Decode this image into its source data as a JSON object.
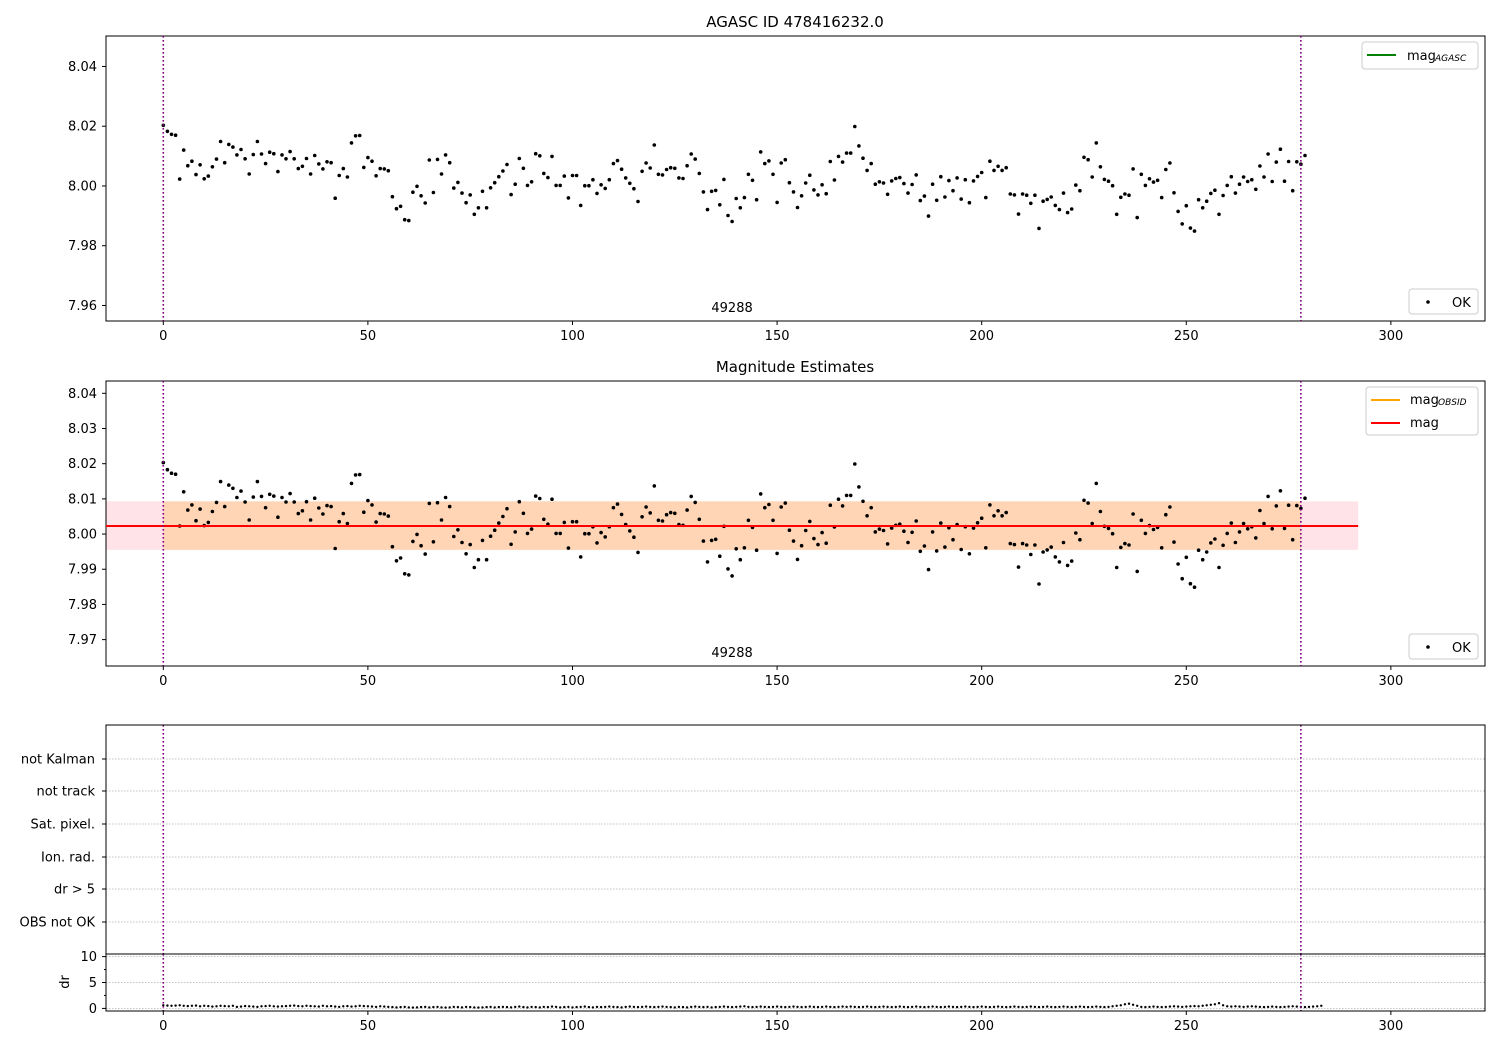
{
  "chart_data": [
    {
      "type": "scatter",
      "title": "AGASC ID 478416232.0",
      "xlabel": "",
      "ylabel": "",
      "xlim": [
        -14,
        323
      ],
      "ylim": [
        7.9548,
        8.0502
      ],
      "xticks": [
        0,
        50,
        100,
        150,
        200,
        250,
        300
      ],
      "yticks": [
        7.96,
        7.98,
        8.0,
        8.02,
        8.04
      ],
      "yticklabels": [
        "7.96",
        "7.98",
        "8.00",
        "8.02",
        "8.04"
      ],
      "vlines": [
        0,
        278
      ],
      "annotation": "49288",
      "annotation_x": 139,
      "legend_upper": [
        {
          "label": "mag",
          "sub": "AGASC",
          "color": "#008000",
          "style": "line"
        }
      ],
      "legend_lower": [
        {
          "label": "OK",
          "color": "#000000",
          "style": "point"
        }
      ],
      "grid": false
    },
    {
      "type": "scatter",
      "title": "Magnitude Estimates",
      "xlabel": "",
      "ylabel": "",
      "xlim": [
        -14,
        323
      ],
      "ylim": [
        7.9625,
        8.0435
      ],
      "xticks": [
        0,
        50,
        100,
        150,
        200,
        250,
        300
      ],
      "yticks": [
        7.97,
        7.98,
        7.99,
        8.0,
        8.01,
        8.02,
        8.03,
        8.04
      ],
      "yticklabels": [
        "7.97",
        "7.98",
        "7.99",
        "8.00",
        "8.01",
        "8.02",
        "8.03",
        "8.04"
      ],
      "vlines": [
        0,
        278
      ],
      "annotation": "49288",
      "annotation_x": 139,
      "mag_line": 8.0023,
      "band_pink": {
        "x": [
          -14,
          292
        ],
        "y": [
          7.9955,
          8.0093
        ],
        "color": "#ffc0cb"
      },
      "band_orange": {
        "x": [
          0,
          278
        ],
        "y": [
          7.9955,
          8.0093
        ],
        "color": "#ffa500"
      },
      "legend_upper": [
        {
          "label": "mag",
          "sub": "OBSID",
          "color": "#ffa500",
          "style": "line"
        },
        {
          "label": "mag",
          "sub": "",
          "color": "#ff0000",
          "style": "line"
        }
      ],
      "legend_lower": [
        {
          "label": "OK",
          "color": "#000000",
          "style": "point"
        }
      ],
      "grid": false
    },
    {
      "type": "scatter",
      "title": "",
      "xlim": [
        -14,
        323
      ],
      "ylim": [
        0,
        7
      ],
      "categories": [
        "not Kalman",
        "not track",
        "Sat. pixel.",
        "Ion. rad.",
        "dr > 5",
        "OBS not OK"
      ],
      "vlines": [
        0,
        278
      ],
      "grid": true
    },
    {
      "type": "scatter",
      "title": "",
      "ylabel": "dr",
      "xlim": [
        -14,
        323
      ],
      "ylim": [
        -0.5,
        10.5
      ],
      "xticks": [
        0,
        50,
        100,
        150,
        200,
        250,
        300
      ],
      "yticks": [
        0,
        5,
        10
      ],
      "yticklabels": [
        "0",
        "5",
        "10"
      ],
      "vlines": [
        0,
        278
      ],
      "grid": true,
      "dr_values": [
        0.6,
        0.55,
        0.5,
        0.55,
        0.6,
        0.5,
        0.45,
        0.5,
        0.55,
        0.4,
        0.5,
        0.45,
        0.35,
        0.4,
        0.5,
        0.45,
        0.4,
        0.5,
        0.3,
        0.35,
        0.45,
        0.4,
        0.35,
        0.3,
        0.4,
        0.45,
        0.5,
        0.4,
        0.35,
        0.4,
        0.45,
        0.5,
        0.55,
        0.45,
        0.4,
        0.5,
        0.45,
        0.4,
        0.35,
        0.5,
        0.4,
        0.45,
        0.35,
        0.3,
        0.4,
        0.45,
        0.35,
        0.4,
        0.5,
        0.45,
        0.4,
        0.35,
        0.3,
        0.4,
        0.35,
        0.3,
        0.25,
        0.2,
        0.25,
        0.3,
        0.2,
        0.15,
        0.2,
        0.25,
        0.3,
        0.2,
        0.25,
        0.3,
        0.2,
        0.15,
        0.2,
        0.3,
        0.25,
        0.2,
        0.3,
        0.25,
        0.2,
        0.15,
        0.2,
        0.25,
        0.3,
        0.2,
        0.25,
        0.3,
        0.25,
        0.2,
        0.3,
        0.35,
        0.25,
        0.2,
        0.3,
        0.25,
        0.2,
        0.3,
        0.25,
        0.35,
        0.3,
        0.2,
        0.25,
        0.3,
        0.2,
        0.25,
        0.3,
        0.35,
        0.25,
        0.2,
        0.3,
        0.25,
        0.3,
        0.35,
        0.3,
        0.25,
        0.2,
        0.3,
        0.35,
        0.3,
        0.25,
        0.3,
        0.35,
        0.3,
        0.25,
        0.3,
        0.35,
        0.3,
        0.25,
        0.2,
        0.3,
        0.25,
        0.2,
        0.3,
        0.35,
        0.3,
        0.25,
        0.3,
        0.2,
        0.25,
        0.3,
        0.35,
        0.3,
        0.25,
        0.3,
        0.35,
        0.4,
        0.3,
        0.25,
        0.3,
        0.35,
        0.3,
        0.25,
        0.3,
        0.35,
        0.3,
        0.25,
        0.3,
        0.35,
        0.3,
        0.25,
        0.3,
        0.35,
        0.3,
        0.25,
        0.3,
        0.35,
        0.3,
        0.25,
        0.3,
        0.35,
        0.3,
        0.35,
        0.3,
        0.25,
        0.3,
        0.35,
        0.3,
        0.25,
        0.3,
        0.35,
        0.3,
        0.25,
        0.3,
        0.35,
        0.3,
        0.25,
        0.3,
        0.35,
        0.3,
        0.25,
        0.3,
        0.35,
        0.3,
        0.25,
        0.3,
        0.35,
        0.3,
        0.25,
        0.3,
        0.35,
        0.3,
        0.25,
        0.3,
        0.35,
        0.3,
        0.25,
        0.3,
        0.35,
        0.3,
        0.25,
        0.3,
        0.35,
        0.3,
        0.25,
        0.3,
        0.35,
        0.3,
        0.25,
        0.3,
        0.35,
        0.3,
        0.25,
        0.3,
        0.35,
        0.3,
        0.25,
        0.3,
        0.35,
        0.3,
        0.25,
        0.3,
        0.35,
        0.3,
        0.25,
        0.3,
        0.4,
        0.5,
        0.6,
        0.8,
        0.9,
        0.7,
        0.5,
        0.3,
        0.25,
        0.3,
        0.35,
        0.3,
        0.25,
        0.3,
        0.35,
        0.4,
        0.35,
        0.3,
        0.35,
        0.4,
        0.45,
        0.4,
        0.5,
        0.6,
        0.7,
        0.8,
        1.0,
        0.6,
        0.4,
        0.35,
        0.4,
        0.35,
        0.3,
        0.35,
        0.4,
        0.35,
        0.3,
        0.25,
        0.3,
        0.35,
        0.3,
        0.25,
        0.3,
        0.35,
        0.4,
        0.35,
        0.3,
        0.25,
        0.3,
        0.35,
        0.4,
        0.5
      ]
    }
  ],
  "mag_points": [
    [
      0,
      8.0203
    ],
    [
      1,
      8.0183
    ],
    [
      2,
      8.0173
    ],
    [
      3,
      8.017
    ],
    [
      4,
      8.0023
    ],
    [
      5,
      8.012
    ],
    [
      6,
      8.0068
    ],
    [
      7,
      8.0083
    ],
    [
      8,
      8.0038
    ],
    [
      9,
      8.0071
    ],
    [
      10,
      8.0024
    ],
    [
      11,
      8.0033
    ],
    [
      12,
      8.0064
    ],
    [
      13,
      8.009
    ],
    [
      14,
      8.0149
    ],
    [
      15,
      8.0078
    ],
    [
      16,
      8.0139
    ],
    [
      17,
      8.013
    ],
    [
      18,
      8.0104
    ],
    [
      19,
      8.0122
    ],
    [
      20,
      8.0091
    ],
    [
      21,
      8.004
    ],
    [
      22,
      8.0105
    ],
    [
      23,
      8.0149
    ],
    [
      24,
      8.0107
    ],
    [
      25,
      8.0075
    ],
    [
      26,
      8.0113
    ],
    [
      27,
      8.0108
    ],
    [
      28,
      8.0048
    ],
    [
      29,
      8.0104
    ],
    [
      30,
      8.0091
    ],
    [
      31,
      8.0115
    ],
    [
      32,
      8.0091
    ],
    [
      33,
      8.0058
    ],
    [
      34,
      8.0066
    ],
    [
      35,
      8.0092
    ],
    [
      36,
      8.004
    ],
    [
      37,
      8.0102
    ],
    [
      38,
      8.0074
    ],
    [
      39,
      8.0057
    ],
    [
      40,
      8.0081
    ],
    [
      41,
      8.0078
    ],
    [
      42,
      7.9959
    ],
    [
      43,
      8.0035
    ],
    [
      44,
      8.0058
    ],
    [
      45,
      8.003
    ],
    [
      46,
      8.0144
    ],
    [
      47,
      8.0168
    ],
    [
      48,
      8.0169
    ],
    [
      49,
      8.0062
    ],
    [
      50,
      8.0095
    ],
    [
      51,
      8.0083
    ],
    [
      52,
      8.0034
    ],
    [
      53,
      8.0058
    ],
    [
      54,
      8.0057
    ],
    [
      55,
      8.0051
    ],
    [
      56,
      7.9964
    ],
    [
      57,
      7.9924
    ],
    [
      58,
      7.9932
    ],
    [
      59,
      7.9887
    ],
    [
      60,
      7.9884
    ],
    [
      61,
      7.9979
    ],
    [
      62,
      7.9999
    ],
    [
      63,
      7.9967
    ],
    [
      64,
      7.9943
    ],
    [
      65,
      8.0087
    ],
    [
      66,
      7.9978
    ],
    [
      67,
      8.0089
    ],
    [
      68,
      8.004
    ],
    [
      69,
      8.0104
    ],
    [
      70,
      8.0078
    ],
    [
      71,
      7.9993
    ],
    [
      72,
      8.0012
    ],
    [
      73,
      7.9976
    ],
    [
      74,
      7.9944
    ],
    [
      75,
      7.997
    ],
    [
      76,
      7.9905
    ],
    [
      77,
      7.9927
    ],
    [
      78,
      7.9982
    ],
    [
      79,
      7.9927
    ],
    [
      80,
      7.9994
    ],
    [
      81,
      8.0011
    ],
    [
      82,
      8.0031
    ],
    [
      83,
      8.005
    ],
    [
      84,
      8.0072
    ],
    [
      85,
      7.9971
    ],
    [
      86,
      8.0006
    ],
    [
      87,
      8.0092
    ],
    [
      88,
      8.0059
    ],
    [
      89,
      8.0002
    ],
    [
      90,
      8.0014
    ],
    [
      91,
      8.0108
    ],
    [
      92,
      8.0101
    ],
    [
      93,
      8.0042
    ],
    [
      94,
      8.0028
    ],
    [
      95,
      8.0099
    ],
    [
      96,
      8.0002
    ],
    [
      97,
      8.0002
    ],
    [
      98,
      8.0033
    ],
    [
      99,
      7.996
    ],
    [
      100,
      8.0035
    ],
    [
      101,
      8.0035
    ],
    [
      102,
      7.9935
    ],
    [
      103,
      8.0001
    ],
    [
      104,
      8.0001
    ],
    [
      105,
      8.0021
    ],
    [
      106,
      7.9975
    ],
    [
      107,
      8.0004
    ],
    [
      108,
      7.9992
    ],
    [
      109,
      8.0021
    ],
    [
      110,
      8.0075
    ],
    [
      111,
      8.0085
    ],
    [
      112,
      8.0056
    ],
    [
      113,
      8.0027
    ],
    [
      114,
      8.0009
    ],
    [
      115,
      7.9991
    ],
    [
      116,
      7.9948
    ],
    [
      117,
      8.0049
    ],
    [
      118,
      8.0077
    ],
    [
      119,
      8.006
    ],
    [
      120,
      8.0137
    ],
    [
      121,
      8.0039
    ],
    [
      122,
      8.0037
    ],
    [
      123,
      8.0055
    ],
    [
      124,
      8.0061
    ],
    [
      125,
      8.0059
    ],
    [
      126,
      8.0027
    ],
    [
      127,
      8.0025
    ],
    [
      128,
      8.0068
    ],
    [
      129,
      8.0107
    ],
    [
      130,
      8.009
    ],
    [
      131,
      8.0042
    ],
    [
      132,
      7.998
    ],
    [
      133,
      7.9921
    ],
    [
      134,
      7.9982
    ],
    [
      135,
      7.9985
    ],
    [
      136,
      7.9937
    ],
    [
      137,
      8.0022
    ],
    [
      138,
      7.9901
    ],
    [
      139,
      7.9881
    ],
    [
      140,
      7.9958
    ],
    [
      141,
      7.9927
    ],
    [
      142,
      7.9961
    ],
    [
      143,
      8.0039
    ],
    [
      144,
      8.0019
    ],
    [
      145,
      7.9954
    ],
    [
      146,
      8.0114
    ],
    [
      147,
      8.0075
    ],
    [
      148,
      8.0084
    ],
    [
      149,
      8.0039
    ],
    [
      150,
      7.9945
    ],
    [
      151,
      8.0077
    ],
    [
      152,
      8.0088
    ],
    [
      153,
      8.0011
    ],
    [
      154,
      7.998
    ],
    [
      155,
      7.9928
    ],
    [
      156,
      7.9967
    ],
    [
      157,
      8.001
    ],
    [
      158,
      8.0036
    ],
    [
      159,
      7.9987
    ],
    [
      160,
      7.997
    ],
    [
      161,
      8.0004
    ],
    [
      162,
      7.9974
    ],
    [
      163,
      8.0082
    ],
    [
      164,
      8.002
    ],
    [
      165,
      8.0099
    ],
    [
      166,
      8.008
    ],
    [
      167,
      8.011
    ],
    [
      168,
      8.011
    ],
    [
      169,
      8.0199
    ],
    [
      170,
      8.0134
    ],
    [
      171,
      8.0093
    ],
    [
      172,
      8.0052
    ],
    [
      173,
      8.0075
    ],
    [
      174,
      8.0006
    ],
    [
      175,
      8.0014
    ],
    [
      176,
      8.001
    ],
    [
      177,
      7.9972
    ],
    [
      178,
      8.0017
    ],
    [
      179,
      8.0025
    ],
    [
      180,
      8.0028
    ],
    [
      181,
      8.0008
    ],
    [
      182,
      7.9976
    ],
    [
      183,
      8.0005
    ],
    [
      184,
      8.0037
    ],
    [
      185,
      7.9951
    ],
    [
      186,
      7.9966
    ],
    [
      187,
      7.9899
    ],
    [
      188,
      8.0006
    ],
    [
      189,
      7.9952
    ],
    [
      190,
      8.0031
    ],
    [
      191,
      7.9963
    ],
    [
      192,
      8.0018
    ],
    [
      193,
      7.9984
    ],
    [
      194,
      8.0027
    ],
    [
      195,
      7.9956
    ],
    [
      196,
      8.0021
    ],
    [
      197,
      7.9944
    ],
    [
      198,
      8.0017
    ],
    [
      199,
      8.0032
    ],
    [
      200,
      8.0045
    ],
    [
      201,
      7.9961
    ],
    [
      202,
      8.0083
    ],
    [
      203,
      8.0052
    ],
    [
      204,
      8.0066
    ],
    [
      205,
      8.0052
    ],
    [
      206,
      8.0061
    ],
    [
      207,
      7.9973
    ],
    [
      208,
      7.997
    ],
    [
      209,
      7.9906
    ],
    [
      210,
      7.9973
    ],
    [
      211,
      7.9969
    ],
    [
      212,
      7.9942
    ],
    [
      213,
      7.9969
    ],
    [
      214,
      7.9858
    ],
    [
      215,
      7.9949
    ],
    [
      216,
      7.9955
    ],
    [
      217,
      7.9963
    ],
    [
      218,
      7.9935
    ],
    [
      219,
      7.9921
    ],
    [
      220,
      7.9976
    ],
    [
      221,
      7.9911
    ],
    [
      222,
      7.9923
    ],
    [
      223,
      8.0003
    ],
    [
      224,
      7.9984
    ],
    [
      225,
      8.0096
    ],
    [
      226,
      8.0088
    ],
    [
      227,
      8.003
    ],
    [
      228,
      8.0144
    ],
    [
      229,
      8.0064
    ],
    [
      230,
      8.0022
    ],
    [
      231,
      8.0016
    ],
    [
      232,
      8.0001
    ],
    [
      233,
      7.9905
    ],
    [
      234,
      7.9962
    ],
    [
      235,
      7.9973
    ],
    [
      236,
      7.9969
    ],
    [
      237,
      8.0057
    ],
    [
      238,
      7.9894
    ],
    [
      239,
      8.0039
    ],
    [
      240,
      8.0002
    ],
    [
      241,
      8.0024
    ],
    [
      242,
      8.0013
    ],
    [
      243,
      8.0019
    ],
    [
      244,
      7.9961
    ],
    [
      245,
      8.0055
    ],
    [
      246,
      8.0077
    ],
    [
      247,
      7.9977
    ],
    [
      248,
      7.9915
    ],
    [
      249,
      7.9873
    ],
    [
      250,
      7.9934
    ],
    [
      251,
      7.9859
    ],
    [
      252,
      7.9849
    ],
    [
      253,
      7.9954
    ],
    [
      254,
      7.9927
    ],
    [
      255,
      7.9949
    ],
    [
      256,
      7.9975
    ],
    [
      257,
      7.9986
    ],
    [
      258,
      7.9905
    ],
    [
      259,
      7.9968
    ],
    [
      260,
      8.0002
    ],
    [
      261,
      8.0031
    ],
    [
      262,
      7.9976
    ],
    [
      263,
      8.0006
    ],
    [
      264,
      8.003
    ],
    [
      265,
      8.0015
    ],
    [
      266,
      8.0021
    ],
    [
      267,
      7.9989
    ],
    [
      268,
      8.0067
    ],
    [
      269,
      8.003
    ],
    [
      270,
      8.0107
    ],
    [
      271,
      8.0015
    ],
    [
      272,
      8.008
    ],
    [
      273,
      8.0123
    ],
    [
      274,
      8.0016
    ],
    [
      275,
      8.0082
    ],
    [
      276,
      7.9984
    ],
    [
      277,
      8.0081
    ],
    [
      278,
      8.0073
    ],
    [
      279,
      8.0102
    ]
  ]
}
